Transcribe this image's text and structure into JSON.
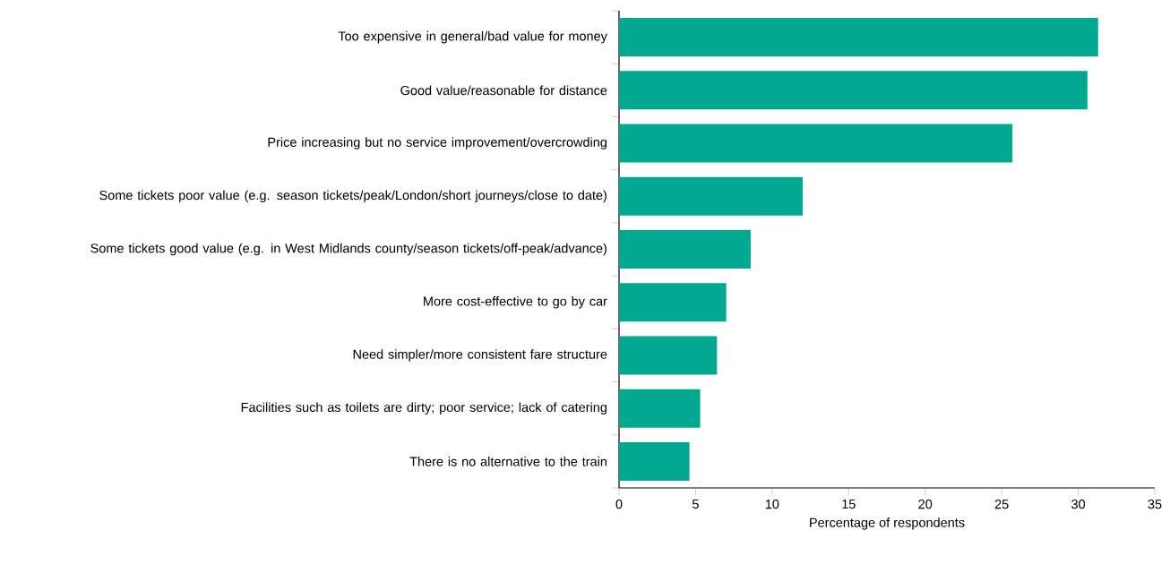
{
  "chart_data": {
    "type": "bar",
    "orientation": "horizontal",
    "xlabel": "Percentage of respondents",
    "categories": [
      "Too expensive in general/bad value for money",
      "Good value/reasonable for distance",
      "Price increasing but no service improvement/overcrowding",
      "Some tickets poor value (e.g. season tickets/peak/London/short journeys/close to date)",
      "Some tickets good value (e.g. in West Midlands county/season tickets/off-peak/advance)",
      "More cost-effective to go by car",
      "Need simpler/more consistent fare structure",
      "Facilities such as toilets are dirty; poor service; lack of catering",
      "There is no alternative to the train"
    ],
    "values": [
      31.3,
      30.6,
      25.7,
      12.0,
      8.6,
      7.0,
      6.4,
      5.3,
      4.6
    ],
    "color": "#02a88f",
    "xlim": [
      0,
      35
    ],
    "xticks": [
      0,
      5,
      10,
      15,
      20,
      25,
      30,
      35
    ],
    "grid": false
  }
}
